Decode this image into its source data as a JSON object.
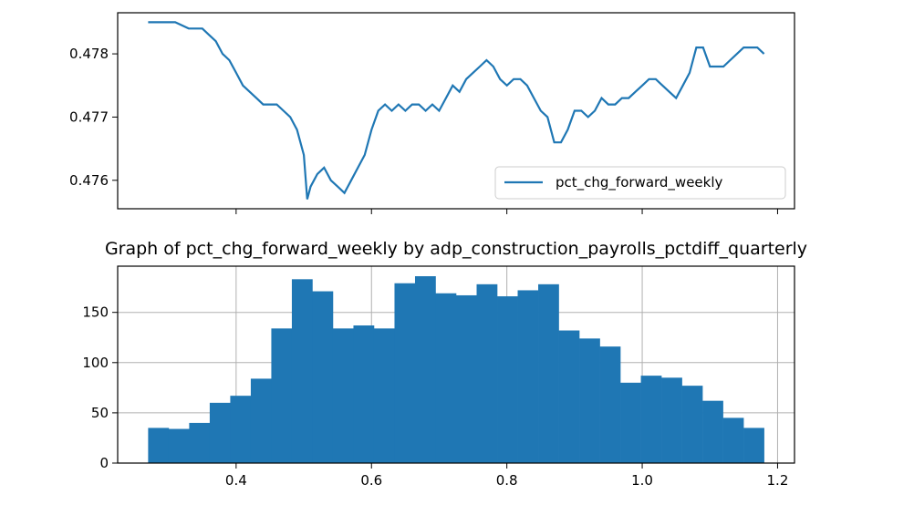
{
  "chart_data": [
    {
      "type": "line",
      "title": "",
      "xlabel": "",
      "ylabel": "",
      "ylim": [
        0.47555,
        0.47865
      ],
      "xlim": [
        0.225,
        1.225
      ],
      "x_ticks_shown": false,
      "y_ticks": [
        0.476,
        0.477,
        0.478
      ],
      "y_tick_labels": [
        "0.476",
        "0.477",
        "0.478"
      ],
      "grid": false,
      "legend_placement": "lower right",
      "series": [
        {
          "name": "pct_chg_forward_weekly",
          "color": "#1f77b4",
          "x": [
            0.27,
            0.29,
            0.31,
            0.33,
            0.34,
            0.35,
            0.36,
            0.37,
            0.38,
            0.39,
            0.4,
            0.41,
            0.42,
            0.43,
            0.44,
            0.45,
            0.46,
            0.47,
            0.48,
            0.49,
            0.5,
            0.505,
            0.51,
            0.515,
            0.52,
            0.53,
            0.54,
            0.55,
            0.56,
            0.57,
            0.58,
            0.59,
            0.6,
            0.61,
            0.62,
            0.63,
            0.64,
            0.65,
            0.66,
            0.67,
            0.68,
            0.69,
            0.7,
            0.71,
            0.72,
            0.73,
            0.74,
            0.75,
            0.76,
            0.77,
            0.78,
            0.79,
            0.8,
            0.81,
            0.82,
            0.83,
            0.84,
            0.85,
            0.86,
            0.87,
            0.88,
            0.89,
            0.9,
            0.91,
            0.92,
            0.93,
            0.94,
            0.95,
            0.96,
            0.97,
            0.98,
            0.99,
            1.0,
            1.01,
            1.02,
            1.03,
            1.04,
            1.05,
            1.06,
            1.07,
            1.08,
            1.09,
            1.1,
            1.11,
            1.12,
            1.13,
            1.14,
            1.15,
            1.16,
            1.17,
            1.18
          ],
          "values": [
            0.4785,
            0.4785,
            0.4785,
            0.4784,
            0.4784,
            0.4784,
            0.4783,
            0.4782,
            0.478,
            0.4779,
            0.4777,
            0.4775,
            0.4774,
            0.4773,
            0.4772,
            0.4772,
            0.4772,
            0.4771,
            0.477,
            0.4768,
            0.4764,
            0.4757,
            0.4759,
            0.476,
            0.4761,
            0.4762,
            0.476,
            0.4759,
            0.4758,
            0.476,
            0.4762,
            0.4764,
            0.4768,
            0.4771,
            0.4772,
            0.4771,
            0.4772,
            0.4771,
            0.4772,
            0.4772,
            0.4771,
            0.4772,
            0.4771,
            0.4773,
            0.4775,
            0.4774,
            0.4776,
            0.4777,
            0.4778,
            0.4779,
            0.4778,
            0.4776,
            0.4775,
            0.4776,
            0.4776,
            0.4775,
            0.4773,
            0.4771,
            0.477,
            0.4766,
            0.4766,
            0.4768,
            0.4771,
            0.4771,
            0.477,
            0.4771,
            0.4773,
            0.4772,
            0.4772,
            0.4773,
            0.4773,
            0.4774,
            0.4775,
            0.4776,
            0.4776,
            0.4775,
            0.4774,
            0.4773,
            0.4775,
            0.4777,
            0.4781,
            0.4781,
            0.4778,
            0.4778,
            0.4778,
            0.4779,
            0.478,
            0.4781,
            0.4781,
            0.4781,
            0.478
          ]
        }
      ]
    },
    {
      "type": "bar",
      "title": "Graph of pct_chg_forward_weekly by adp_construction_payrolls_pctdiff_quarterly",
      "xlabel": "",
      "ylabel": "",
      "xlim": [
        0.225,
        1.225
      ],
      "ylim": [
        0,
        196
      ],
      "x_ticks": [
        0.4,
        0.6,
        0.8,
        1.0,
        1.2
      ],
      "x_tick_labels": [
        "0.4",
        "0.6",
        "0.8",
        "1.0",
        "1.2"
      ],
      "y_ticks": [
        0,
        50,
        100,
        150
      ],
      "y_tick_labels": [
        "0",
        "50",
        "100",
        "150"
      ],
      "grid": true,
      "bar_color": "#1f77b4",
      "bin_start": 0.27,
      "bin_end": 1.18,
      "values": [
        35,
        34,
        40,
        60,
        67,
        84,
        134,
        183,
        171,
        134,
        137,
        134,
        179,
        186,
        169,
        167,
        178,
        166,
        172,
        178,
        132,
        124,
        116,
        80,
        87,
        85,
        77,
        62,
        45,
        35
      ]
    }
  ]
}
